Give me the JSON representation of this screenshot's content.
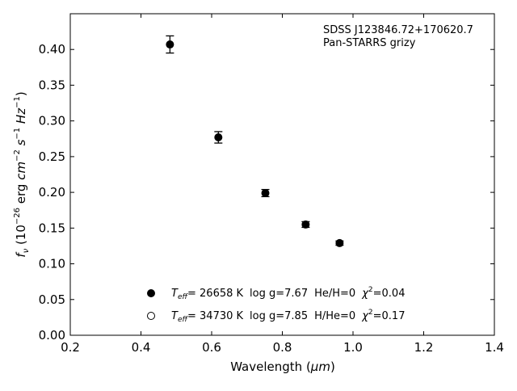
{
  "chart_data": {
    "type": "scatter",
    "xlabel_main": "Wavelength (",
    "xlabel_unit": "μm",
    "xlabel_close": ")",
    "ylabel": {
      "f": "f",
      "sub": "ν",
      "open": " (10",
      "exp1": "−26",
      "erg": " erg ",
      "cm": "cm",
      "exp2": "−2",
      "s": " s",
      "exp3": "−1",
      "hz": " Hz",
      "exp4": "−1",
      "close": ")"
    },
    "xlim": [
      0.2,
      1.4
    ],
    "ylim": [
      0.0,
      0.45
    ],
    "xticks": [
      "0.2",
      "0.4",
      "0.6",
      "0.8",
      "1.0",
      "1.2",
      "1.4"
    ],
    "yticks": [
      "0.00",
      "0.05",
      "0.10",
      "0.15",
      "0.20",
      "0.25",
      "0.30",
      "0.35",
      "0.40"
    ],
    "annotation": [
      "SDSS J123846.72+170620.7",
      "Pan-STARRS grizy"
    ],
    "series": [
      {
        "marker": "filled-circle",
        "x": [
          0.482,
          0.619,
          0.752,
          0.866,
          0.962
        ],
        "y": [
          0.407,
          0.277,
          0.199,
          0.155,
          0.129
        ],
        "yerr": [
          0.012,
          0.008,
          0.005,
          0.004,
          0.003
        ]
      }
    ],
    "legend": [
      {
        "marker": "filled-circle",
        "teff_sym": "T",
        "teff_sub": "eff",
        "teff": "= 26658 K",
        "logg": "log g=7.67",
        "comp": "He/H=0",
        "chi_sym": "χ",
        "chi_sup": "2",
        "chi": "=0.04"
      },
      {
        "marker": "open-circle",
        "teff_sym": "T",
        "teff_sub": "eff",
        "teff": "= 34730 K",
        "logg": "log g=7.85",
        "comp": "H/He=0",
        "chi_sym": "χ",
        "chi_sup": "2",
        "chi": "=0.17"
      }
    ],
    "legend_position": "lower-center",
    "grid": false
  }
}
